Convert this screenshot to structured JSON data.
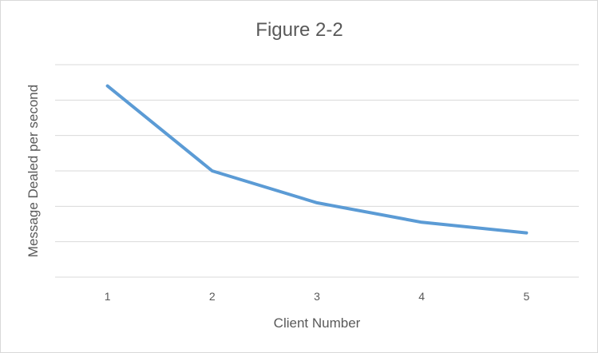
{
  "chart_data": {
    "type": "line",
    "title": "Figure 2-2",
    "xlabel": "Client Number",
    "ylabel": "Message Dealed per second",
    "categories": [
      "1",
      "2",
      "3",
      "4",
      "5"
    ],
    "series": [
      {
        "values": [
          5.4,
          3.0,
          2.1,
          1.55,
          1.25
        ],
        "color": "#5b9bd5"
      }
    ],
    "ylim": [
      0,
      6
    ],
    "y_gridlines": [
      0,
      1,
      2,
      3,
      4,
      5,
      6
    ],
    "y_tick_labels_shown": false,
    "grid": true,
    "legend": "none"
  }
}
